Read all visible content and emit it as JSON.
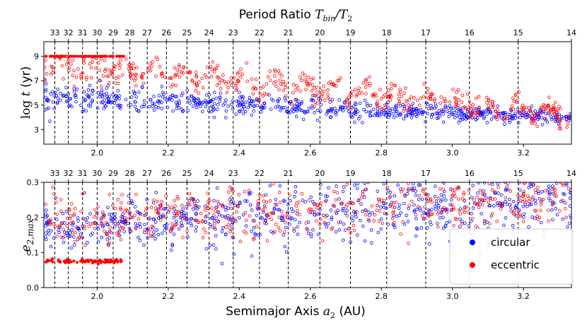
{
  "chart_data": [
    {
      "type": "scatter",
      "panel": "top",
      "title": "Period Ratio T_bin/T_2",
      "title_parts": {
        "prefix": "Period Ratio ",
        "T": "T",
        "bin": "bin",
        "slash": "/T",
        "two": "2"
      },
      "xlabel": "",
      "ylabel_parts": {
        "log": "log ",
        "t": "t",
        "unit": " (yr)"
      },
      "xlim": [
        1.85,
        3.335
      ],
      "ylim": [
        1.8,
        10.2
      ],
      "xticks": [
        2.0,
        2.2,
        2.4,
        2.6,
        2.8,
        3.0,
        3.2
      ],
      "xtick_labels": [
        "2.0",
        "2.2",
        "2.4",
        "2.6",
        "2.8",
        "3.0",
        "3.2"
      ],
      "yticks": [
        3,
        5,
        7,
        9
      ],
      "ytick_labels": [
        "3",
        "5",
        "7",
        "9"
      ],
      "resonances": [
        {
          "label": "33",
          "a2": 1.881
        },
        {
          "label": "32",
          "a2": 1.919
        },
        {
          "label": "31",
          "a2": 1.959
        },
        {
          "label": "30",
          "a2": 2.0
        },
        {
          "label": "29",
          "a2": 2.045
        },
        {
          "label": "28",
          "a2": 2.092
        },
        {
          "label": "27",
          "a2": 2.141
        },
        {
          "label": "26",
          "a2": 2.195
        },
        {
          "label": "25",
          "a2": 2.253
        },
        {
          "label": "24",
          "a2": 2.315
        },
        {
          "label": "23",
          "a2": 2.383
        },
        {
          "label": "22",
          "a2": 2.457
        },
        {
          "label": "21",
          "a2": 2.538
        },
        {
          "label": "20",
          "a2": 2.627
        },
        {
          "label": "19",
          "a2": 2.713
        },
        {
          "label": "18",
          "a2": 2.815
        },
        {
          "label": "17",
          "a2": 2.925
        },
        {
          "label": "16",
          "a2": 3.048
        },
        {
          "label": "15",
          "a2": 3.185
        },
        {
          "label": "14",
          "a2": 3.335
        }
      ],
      "series": [
        {
          "name": "circular",
          "color": "#0000ff",
          "description": "log t ≈ 5.0–6.5 at a2≈1.87, decreasing to ≈4.0 by a2≈3.3"
        },
        {
          "name": "eccentric",
          "color": "#ff0000",
          "description": "log t saturates at 9 for a2<2.1, dropping in resonance-spaced clumps to ≈4.2 by a2≈3.3"
        }
      ]
    },
    {
      "type": "scatter",
      "panel": "bottom",
      "title": "",
      "xlabel": "Semimajor Axis a_2 (AU)",
      "xlabel_parts": {
        "prefix": "Semimajor Axis ",
        "a": "a",
        "sub": "2",
        "unit": " (AU)"
      },
      "ylabel_parts": {
        "e": "e",
        "sub": "2,max"
      },
      "xlim": [
        1.85,
        3.335
      ],
      "ylim": [
        0.0,
        0.3
      ],
      "xticks": [
        2.0,
        2.2,
        2.4,
        2.6,
        2.8,
        3.0,
        3.2
      ],
      "xtick_labels": [
        "2.0",
        "2.2",
        "2.4",
        "2.6",
        "2.8",
        "3.0",
        "3.2"
      ],
      "yticks": [
        0.0,
        0.1,
        0.2,
        0.3
      ],
      "ytick_labels": [
        "0.0",
        "0.1",
        "0.2",
        "0.3"
      ],
      "legend": {
        "position": "bottom-right",
        "entries": [
          "circular",
          "eccentric"
        ]
      },
      "series": [
        {
          "name": "circular",
          "color": "#0000ff",
          "description": "e2,max ≈ 0.13–0.22 near a2≈1.9, rising and scattering to 0.3 beyond a2≈2.6"
        },
        {
          "name": "eccentric",
          "color": "#ff0000",
          "description": "band at e2,max≈0.07–0.08 for a2<2.07 plus scattered 0.14–0.3 points"
        }
      ]
    }
  ]
}
